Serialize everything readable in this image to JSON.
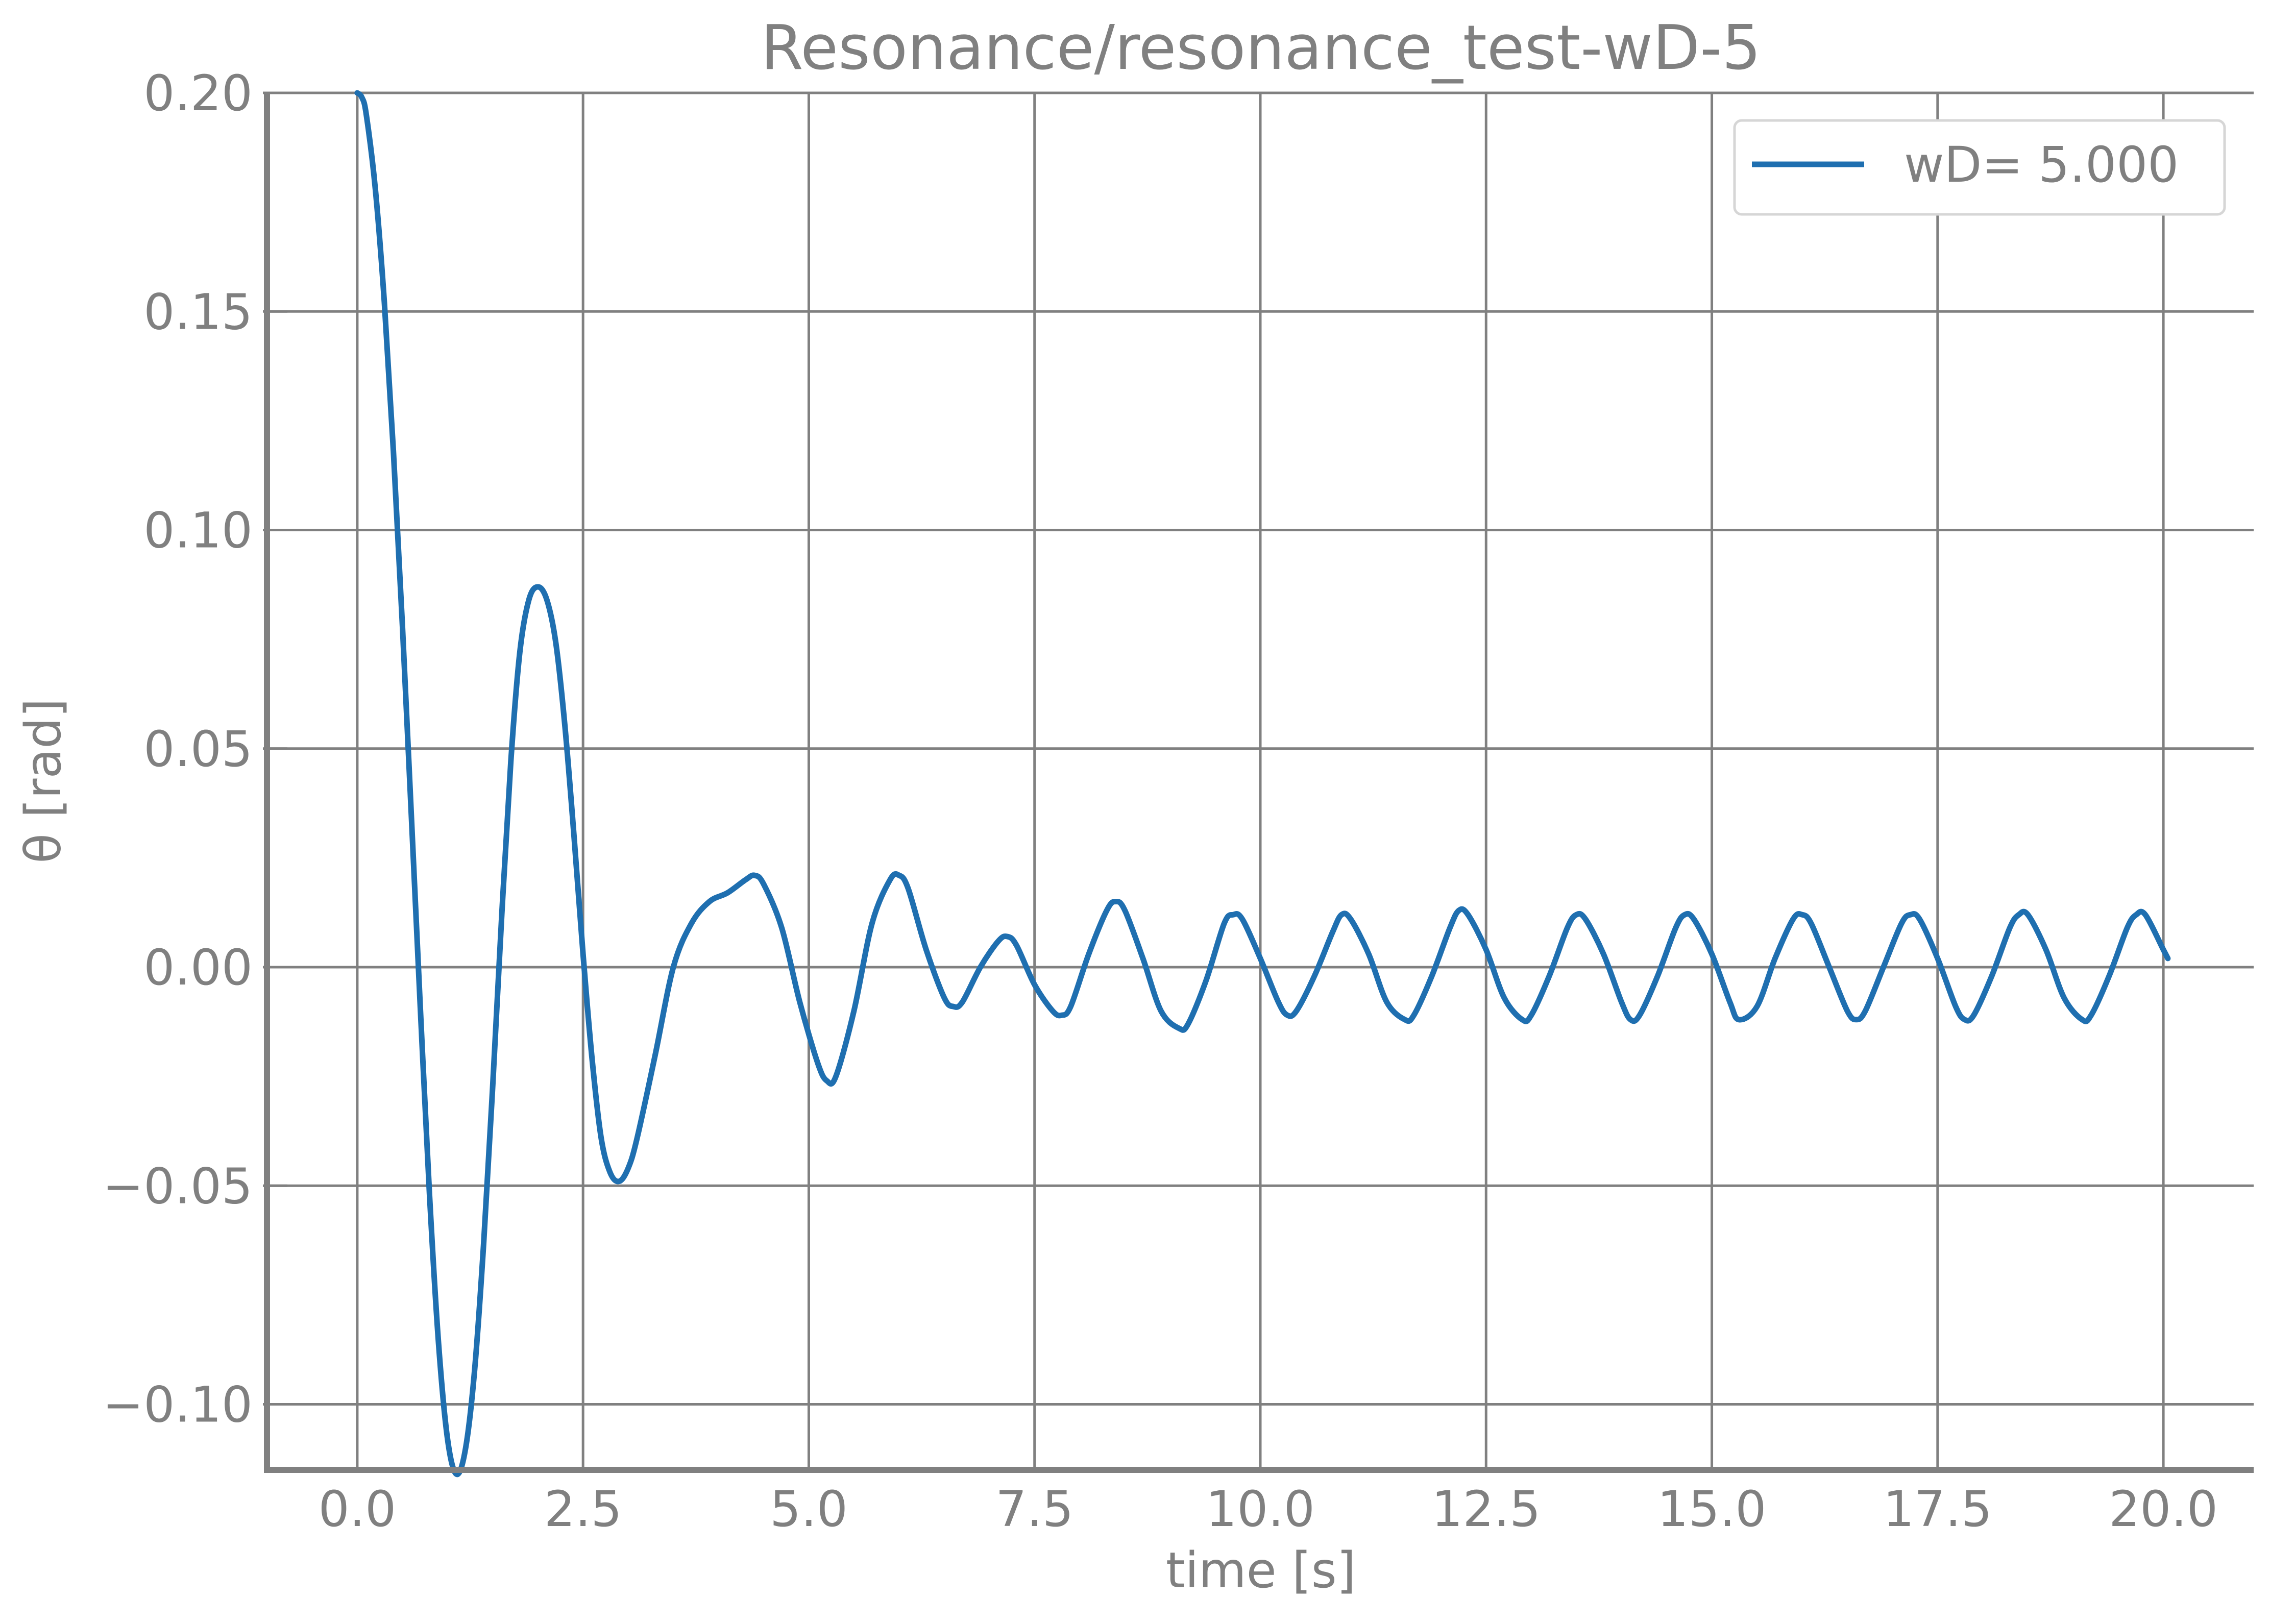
{
  "chart_data": {
    "type": "line",
    "title": "Resonance/resonance_test-wD-5",
    "xlabel": "time [s]",
    "ylabel": "θ [rad]",
    "xlim": [
      -1.0,
      21.0
    ],
    "ylim": [
      -0.115,
      0.2
    ],
    "x_ticks": [
      0.0,
      2.5,
      5.0,
      7.5,
      10.0,
      12.5,
      15.0,
      17.5,
      20.0
    ],
    "x_tick_labels": [
      "0.0",
      "2.5",
      "5.0",
      "7.5",
      "10.0",
      "12.5",
      "15.0",
      "17.5",
      "20.0"
    ],
    "y_ticks": [
      -0.1,
      -0.05,
      0.0,
      0.05,
      0.1,
      0.15,
      0.2
    ],
    "y_tick_labels": [
      "−0.10",
      "−0.05",
      "0.00",
      "0.05",
      "0.10",
      "0.15",
      "0.20"
    ],
    "grid": true,
    "legend_position": "top-right",
    "series": [
      {
        "name": "wD= 5.000",
        "color": "#1f6fb0",
        "points": [
          [
            0.0,
            0.2
          ],
          [
            0.05,
            0.199
          ],
          [
            0.1,
            0.195
          ],
          [
            0.2,
            0.178
          ],
          [
            0.3,
            0.152
          ],
          [
            0.4,
            0.118
          ],
          [
            0.5,
            0.078
          ],
          [
            0.6,
            0.034
          ],
          [
            0.7,
            -0.01
          ],
          [
            0.8,
            -0.052
          ],
          [
            0.9,
            -0.086
          ],
          [
            1.0,
            -0.108
          ],
          [
            1.1,
            -0.116
          ],
          [
            1.2,
            -0.11
          ],
          [
            1.3,
            -0.092
          ],
          [
            1.4,
            -0.063
          ],
          [
            1.5,
            -0.027
          ],
          [
            1.6,
            0.012
          ],
          [
            1.7,
            0.047
          ],
          [
            1.8,
            0.072
          ],
          [
            1.9,
            0.084
          ],
          [
            2.0,
            0.087
          ],
          [
            2.1,
            0.084
          ],
          [
            2.2,
            0.074
          ],
          [
            2.3,
            0.055
          ],
          [
            2.4,
            0.03
          ],
          [
            2.5,
            0.003
          ],
          [
            2.6,
            -0.021
          ],
          [
            2.7,
            -0.039
          ],
          [
            2.8,
            -0.047
          ],
          [
            2.9,
            -0.049
          ],
          [
            3.0,
            -0.046
          ],
          [
            3.1,
            -0.039
          ],
          [
            3.3,
            -0.02
          ],
          [
            3.5,
            0.0
          ],
          [
            3.7,
            0.01
          ],
          [
            3.9,
            0.015
          ],
          [
            4.1,
            0.017
          ],
          [
            4.3,
            0.02
          ],
          [
            4.4,
            0.021
          ],
          [
            4.5,
            0.019
          ],
          [
            4.7,
            0.009
          ],
          [
            4.9,
            -0.008
          ],
          [
            5.1,
            -0.022
          ],
          [
            5.2,
            -0.026
          ],
          [
            5.3,
            -0.025
          ],
          [
            5.5,
            -0.01
          ],
          [
            5.7,
            0.01
          ],
          [
            5.9,
            0.02
          ],
          [
            6.0,
            0.021
          ],
          [
            6.1,
            0.018
          ],
          [
            6.3,
            0.004
          ],
          [
            6.5,
            -0.007
          ],
          [
            6.6,
            -0.009
          ],
          [
            6.7,
            -0.008
          ],
          [
            6.9,
            0.0
          ],
          [
            7.1,
            0.006
          ],
          [
            7.2,
            0.007
          ],
          [
            7.3,
            0.005
          ],
          [
            7.5,
            -0.004
          ],
          [
            7.7,
            -0.01
          ],
          [
            7.8,
            -0.011
          ],
          [
            7.9,
            -0.009
          ],
          [
            8.1,
            0.003
          ],
          [
            8.3,
            0.013
          ],
          [
            8.4,
            0.015
          ],
          [
            8.5,
            0.013
          ],
          [
            8.7,
            0.002
          ],
          [
            8.9,
            -0.01
          ],
          [
            9.1,
            -0.014
          ],
          [
            9.2,
            -0.013
          ],
          [
            9.4,
            -0.003
          ],
          [
            9.6,
            0.01
          ],
          [
            9.7,
            0.012
          ],
          [
            9.8,
            0.011
          ],
          [
            10.0,
            0.002
          ],
          [
            10.2,
            -0.008
          ],
          [
            10.3,
            -0.011
          ],
          [
            10.4,
            -0.01
          ],
          [
            10.6,
            -0.002
          ],
          [
            10.8,
            0.008
          ],
          [
            10.9,
            0.012
          ],
          [
            11.0,
            0.011
          ],
          [
            11.2,
            0.003
          ],
          [
            11.4,
            -0.008
          ],
          [
            11.6,
            -0.012
          ],
          [
            11.7,
            -0.011
          ],
          [
            11.9,
            -0.002
          ],
          [
            12.1,
            0.009
          ],
          [
            12.2,
            0.013
          ],
          [
            12.3,
            0.012
          ],
          [
            12.5,
            0.004
          ],
          [
            12.7,
            -0.007
          ],
          [
            12.9,
            -0.012
          ],
          [
            13.0,
            -0.011
          ],
          [
            13.2,
            -0.002
          ],
          [
            13.4,
            0.009
          ],
          [
            13.5,
            0.012
          ],
          [
            13.6,
            0.011
          ],
          [
            13.8,
            0.003
          ],
          [
            14.0,
            -0.008
          ],
          [
            14.1,
            -0.012
          ],
          [
            14.2,
            -0.011
          ],
          [
            14.4,
            -0.002
          ],
          [
            14.6,
            0.009
          ],
          [
            14.7,
            0.012
          ],
          [
            14.8,
            0.011
          ],
          [
            15.0,
            0.003
          ],
          [
            15.2,
            -0.008
          ],
          [
            15.3,
            -0.012
          ],
          [
            15.5,
            -0.009
          ],
          [
            15.7,
            0.002
          ],
          [
            15.9,
            0.011
          ],
          [
            16.0,
            0.012
          ],
          [
            16.1,
            0.01
          ],
          [
            16.3,
            0.0
          ],
          [
            16.5,
            -0.01
          ],
          [
            16.6,
            -0.012
          ],
          [
            16.7,
            -0.01
          ],
          [
            16.9,
            0.0
          ],
          [
            17.1,
            0.01
          ],
          [
            17.2,
            0.012
          ],
          [
            17.3,
            0.011
          ],
          [
            17.5,
            0.002
          ],
          [
            17.7,
            -0.009
          ],
          [
            17.8,
            -0.012
          ],
          [
            17.9,
            -0.011
          ],
          [
            18.1,
            -0.002
          ],
          [
            18.3,
            0.009
          ],
          [
            18.4,
            0.012
          ],
          [
            18.5,
            0.012
          ],
          [
            18.7,
            0.004
          ],
          [
            18.9,
            -0.007
          ],
          [
            19.1,
            -0.012
          ],
          [
            19.2,
            -0.011
          ],
          [
            19.4,
            -0.002
          ],
          [
            19.6,
            0.009
          ],
          [
            19.7,
            0.012
          ],
          [
            19.8,
            0.012
          ],
          [
            20.0,
            0.004
          ],
          [
            20.05,
            0.002
          ]
        ]
      }
    ]
  }
}
